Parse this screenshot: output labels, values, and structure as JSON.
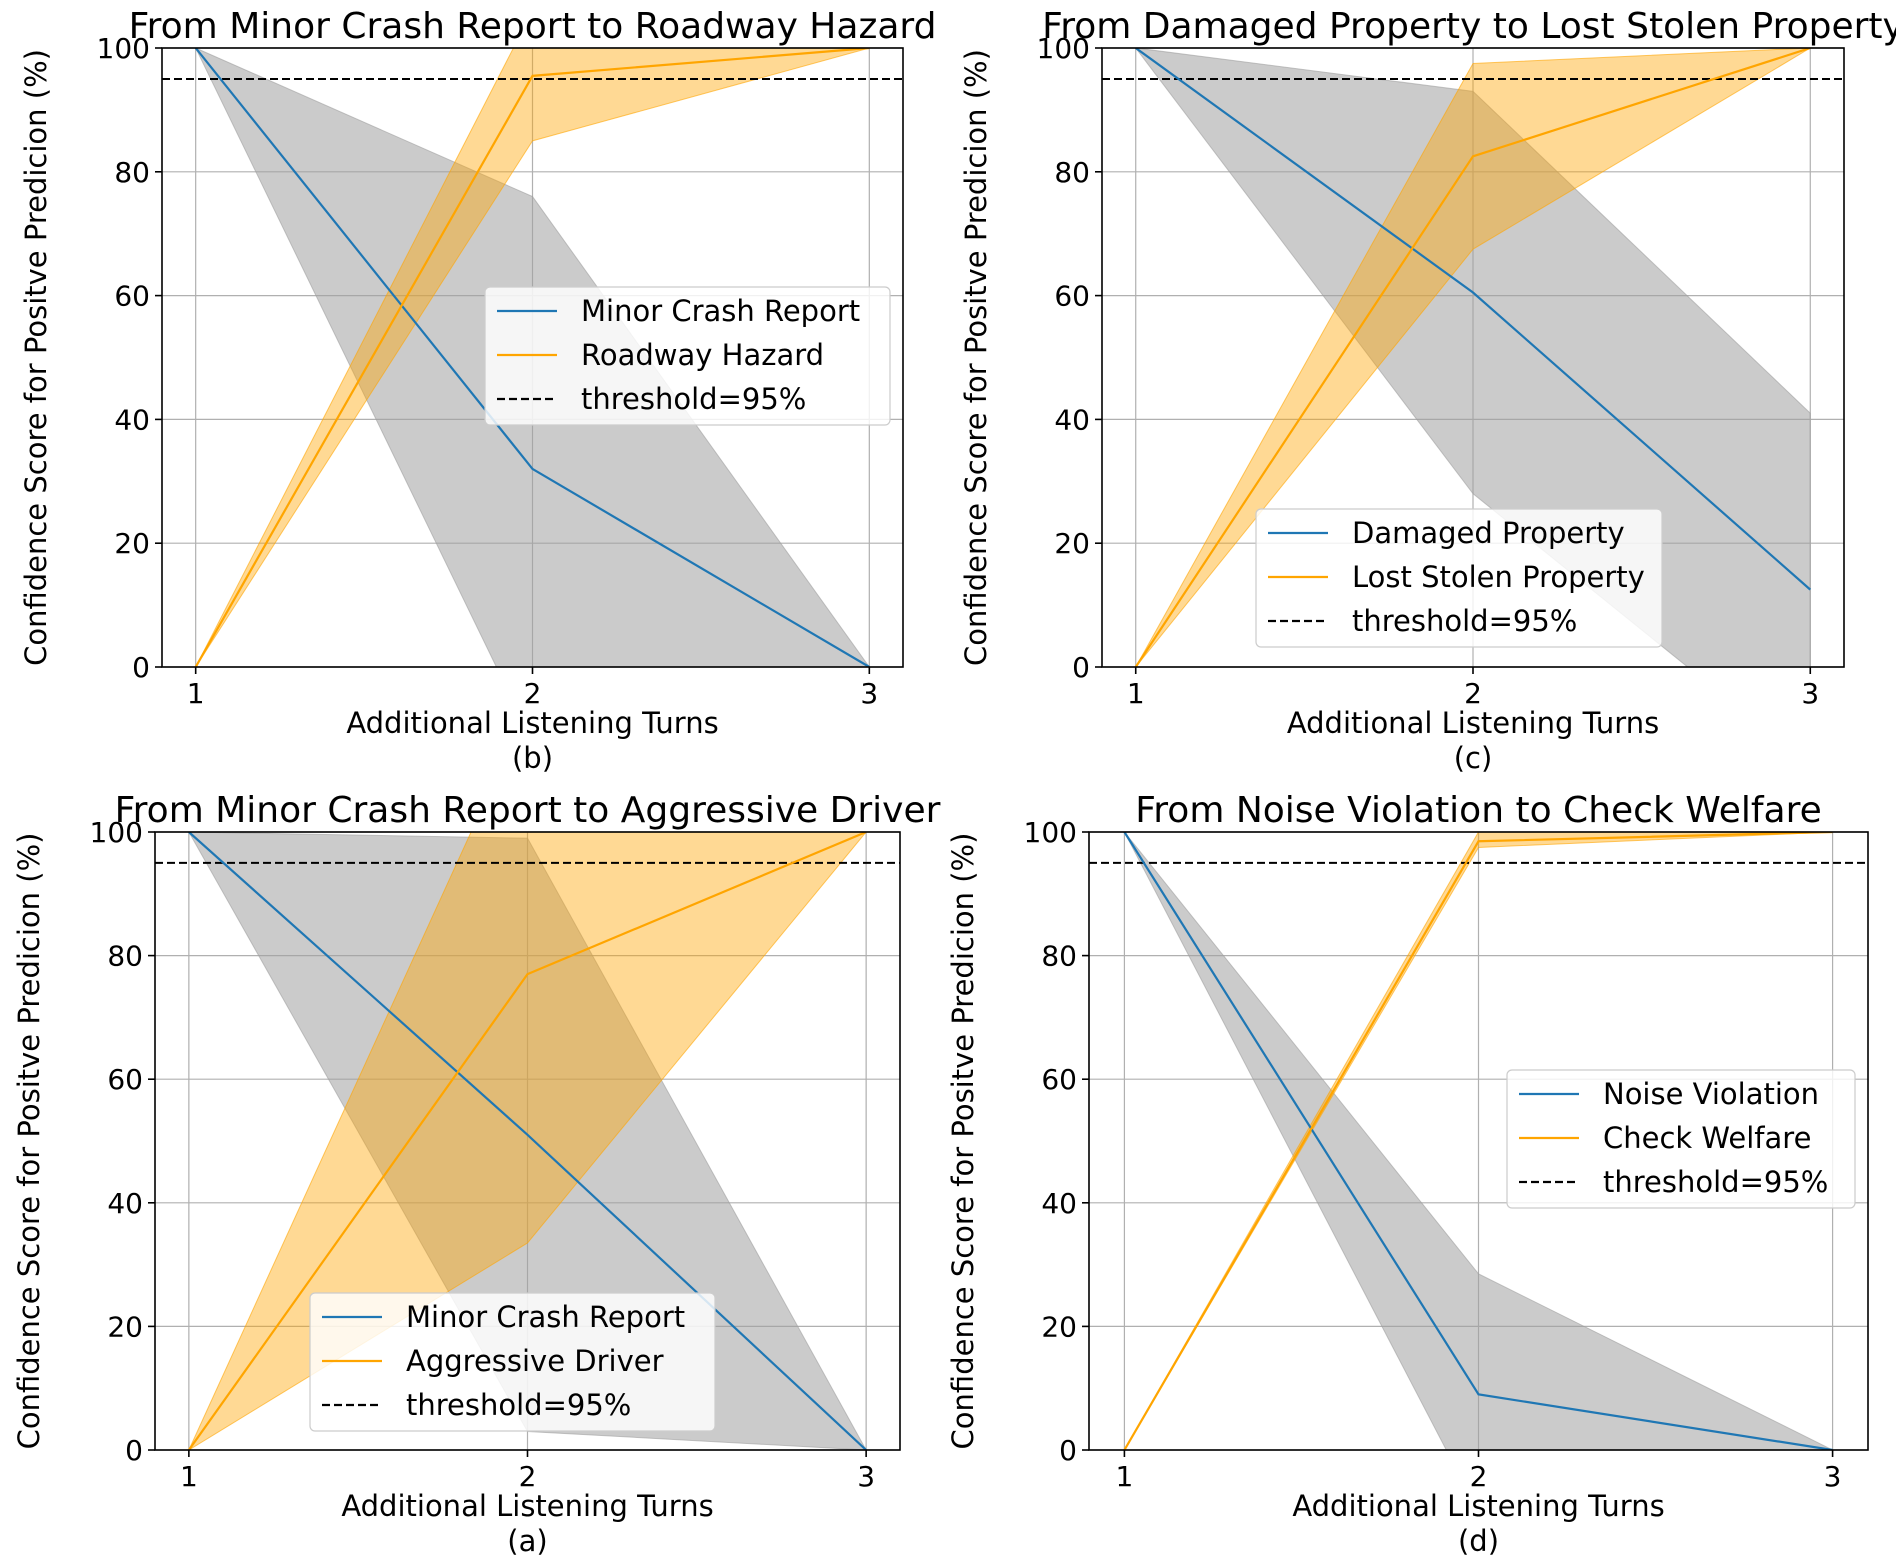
{
  "colors": {
    "series_a": "#1f77b4",
    "series_b": "#ffa500",
    "band_a": "#a0a0a0",
    "band_b": "#ffa500",
    "threshold": "#000000",
    "grid": "#b0b0b0"
  },
  "chart_data": [
    {
      "type": "line",
      "title": "From Minor Crash Report to Roadway Hazard",
      "xlabel": "Additional Listening Turns",
      "ylabel": "Confidence Score for Positve Predicion (%)",
      "caption": "(b)",
      "x": [
        1,
        2,
        3
      ],
      "xlim": [
        0.9,
        3.1
      ],
      "ylim": [
        0,
        100
      ],
      "xticks": [
        1,
        2,
        3
      ],
      "yticks": [
        0,
        20,
        40,
        60,
        80,
        100
      ],
      "grid": true,
      "legend_position": "center-right",
      "threshold": {
        "value": 95,
        "label": "threshold=95%"
      },
      "series": [
        {
          "name": "Minor Crash Report",
          "color": "blue",
          "values": [
            100,
            32,
            0
          ],
          "lower": [
            100,
            -12,
            0
          ],
          "upper": [
            100,
            76,
            0
          ]
        },
        {
          "name": "Roadway Hazard",
          "color": "orange",
          "values": [
            0,
            95.5,
            100
          ],
          "lower": [
            0,
            85,
            100
          ],
          "upper": [
            0,
            106,
            100
          ]
        }
      ]
    },
    {
      "type": "line",
      "title": "From Damaged Property to Lost Stolen Property",
      "xlabel": "Additional Listening Turns",
      "ylabel": "Confidence Score for Positve Predicion (%)",
      "caption": "(c)",
      "x": [
        1,
        2,
        3
      ],
      "xlim": [
        0.9,
        3.1
      ],
      "ylim": [
        0,
        100
      ],
      "xticks": [
        1,
        2,
        3
      ],
      "yticks": [
        0,
        20,
        40,
        60,
        80,
        100
      ],
      "grid": true,
      "legend_position": "lower-center",
      "threshold": {
        "value": 95,
        "label": "threshold=95%"
      },
      "series": [
        {
          "name": "Damaged Property",
          "color": "blue",
          "values": [
            100,
            60.5,
            12.5
          ],
          "lower": [
            100,
            28,
            -16
          ],
          "upper": [
            100,
            93,
            41
          ]
        },
        {
          "name": "Lost Stolen Property",
          "color": "orange",
          "values": [
            0,
            82.5,
            100
          ],
          "lower": [
            0,
            67.5,
            100
          ],
          "upper": [
            0,
            97.5,
            100
          ]
        }
      ]
    },
    {
      "type": "line",
      "title": "From Minor Crash Report to Aggressive Driver",
      "xlabel": "Additional Listening Turns",
      "ylabel": "Confidence Score for Positve Predicion (%)",
      "caption": "(a)",
      "x": [
        1,
        2,
        3
      ],
      "xlim": [
        0.9,
        3.1
      ],
      "ylim": [
        0,
        100
      ],
      "xticks": [
        1,
        2,
        3
      ],
      "yticks": [
        0,
        20,
        40,
        60,
        80,
        100
      ],
      "grid": true,
      "legend_position": "lower-center",
      "threshold": {
        "value": 95,
        "label": "threshold=95%"
      },
      "series": [
        {
          "name": "Minor Crash Report",
          "color": "blue",
          "values": [
            100,
            51,
            0
          ],
          "lower": [
            100,
            3,
            0
          ],
          "upper": [
            100,
            99,
            0
          ]
        },
        {
          "name": "Aggressive Driver",
          "color": "orange",
          "values": [
            0,
            77,
            100
          ],
          "lower": [
            0,
            33.5,
            100
          ],
          "upper": [
            0,
            120,
            100
          ]
        }
      ]
    },
    {
      "type": "line",
      "title": "From Noise Violation to Check Welfare",
      "xlabel": "Additional Listening Turns",
      "ylabel": "Confidence Score for Positve Predicion (%)",
      "caption": "(d)",
      "x": [
        1,
        2,
        3
      ],
      "xlim": [
        0.9,
        3.1
      ],
      "ylim": [
        0,
        100
      ],
      "xticks": [
        1,
        2,
        3
      ],
      "yticks": [
        0,
        20,
        40,
        60,
        80,
        100
      ],
      "grid": true,
      "legend_position": "center-right",
      "threshold": {
        "value": 95,
        "label": "threshold=95%"
      },
      "series": [
        {
          "name": "Noise Violation",
          "color": "blue",
          "values": [
            100,
            9,
            0
          ],
          "lower": [
            100,
            -10,
            0
          ],
          "upper": [
            100,
            28.5,
            0
          ]
        },
        {
          "name": "Check Welfare",
          "color": "orange",
          "values": [
            0,
            98.5,
            100
          ],
          "lower": [
            0,
            97.5,
            100
          ],
          "upper": [
            0,
            100,
            100
          ]
        }
      ]
    }
  ]
}
